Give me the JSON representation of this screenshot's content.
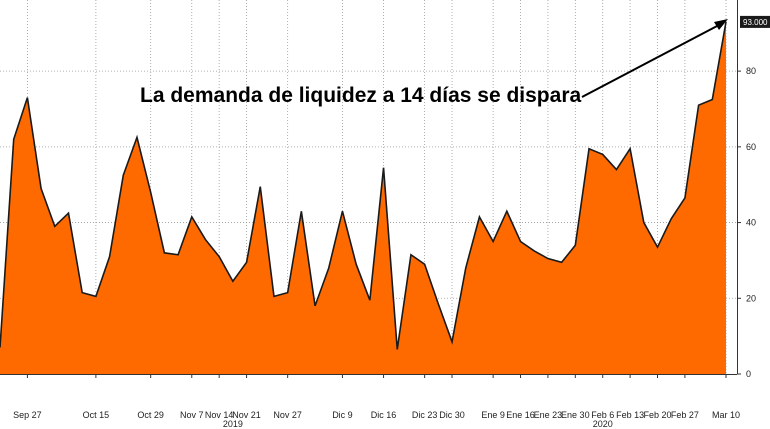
{
  "chart_data": {
    "type": "area",
    "title": "",
    "xlabel": "",
    "ylabel": "",
    "ylim": [
      0,
      95
    ],
    "yticks": [
      0,
      20,
      40,
      60,
      80
    ],
    "grid": true,
    "colors": {
      "fill": "#ff6a00",
      "line": "#1a1a1a",
      "grid": "#9a9a9a",
      "last_label_bg": "#1a1a1a"
    },
    "values": [
      7,
      62,
      73,
      49,
      39,
      42.5,
      21.5,
      20.5,
      31,
      52.5,
      62.5,
      48,
      32,
      31.5,
      41.5,
      35.5,
      31,
      24.5,
      29.5,
      49.5,
      20.5,
      21.5,
      43,
      18,
      28,
      43,
      29,
      19.5,
      54.5,
      6.5,
      31.5,
      29,
      18.5,
      8.5,
      28,
      41.5,
      35,
      43,
      35,
      32.5,
      30.5,
      29.5,
      34,
      59.5,
      58,
      54,
      59.5,
      40,
      33.5,
      41,
      46.5,
      71,
      72.5,
      93
    ],
    "x_labels": [
      "Sep 27",
      "Oct 15",
      "Oct 29",
      "Nov 7",
      "Nov 14",
      "Nov 21",
      "Nov 27",
      "Dic 9",
      "Dic 16",
      "Dic 23",
      "Dic 30",
      "Ene 9",
      "Ene 16",
      "Ene 23",
      "Ene 30",
      "Feb 6",
      "Feb 13",
      "Feb 20",
      "Feb 27",
      "Mar 10"
    ],
    "x_label_index": [
      2,
      7,
      11,
      14,
      16,
      18,
      21,
      25,
      28,
      31,
      33,
      36,
      38,
      40,
      42,
      44,
      46,
      48,
      50,
      53
    ],
    "years": [
      "2019",
      "2020"
    ],
    "year_under_index": [
      17,
      44
    ],
    "last_value_label": "93.000",
    "annotation": "La demanda de liquidez a 14 días se dispara"
  }
}
